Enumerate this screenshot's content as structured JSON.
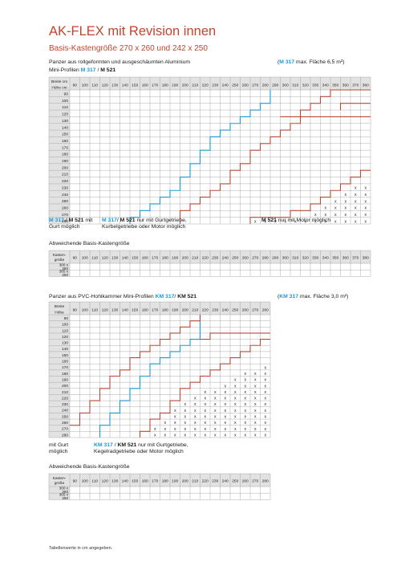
{
  "title": "AK-FLEX mit Revision innen",
  "subtitle": "Basis-Kastengröße 270 x 260 und 242 x 250",
  "colors": {
    "accent": "#c8432b",
    "blue_line": "#1a9ad6",
    "red_line": "#b94a35"
  },
  "section1": {
    "heading1": "Panzer aus rollgeformten und ausgeschäumten Aluminium",
    "heading2_prefix": "Mini-Profilen ",
    "profile_a": "M 317",
    "sep": " / ",
    "profile_b": "M 521",
    "max_open": "(",
    "max_prof": "M 317",
    "max_text": " max. Fläche 6,5 m²)",
    "corner_top": "Breite cm",
    "corner_bottom": "Höhe cm",
    "breite": [
      "90",
      "100",
      "110",
      "120",
      "130",
      "140",
      "150",
      "160",
      "170",
      "180",
      "190",
      "200",
      "210",
      "220",
      "230",
      "240",
      "250",
      "260",
      "270",
      "280",
      "290",
      "300",
      "310",
      "320",
      "330",
      "340",
      "350",
      "360",
      "370",
      "380"
    ],
    "hoehe": [
      "90",
      "100",
      "110",
      "120",
      "130",
      "140",
      "150",
      "160",
      "170",
      "180",
      "190",
      "200",
      "210",
      "220",
      "230",
      "240",
      "250",
      "260",
      "270",
      "280"
    ],
    "legend_a": {
      "p1": "M 317",
      "sep": " / ",
      "p2": "M 521",
      "t1": " mit",
      "t2": "Gurt möglich"
    },
    "legend_b": {
      "p1": "M 317",
      "sep": "/ ",
      "p2": "M 521",
      "t1": " nur mit Gurtgetriebe,",
      "t2": "Kurbelgetriebe oder Motor möglich"
    },
    "legend_c": {
      "p": "M 521",
      "t": " nur mit Motor möglich"
    }
  },
  "alt1": {
    "heading": "Abweichende Basis-Kastengröße",
    "header_label": "Kasten-größe",
    "cols": [
      "90",
      "100",
      "110",
      "120",
      "130",
      "140",
      "150",
      "160",
      "170",
      "180",
      "190",
      "200",
      "210",
      "220",
      "230",
      "240",
      "250",
      "260",
      "270",
      "280",
      "290",
      "300",
      "310",
      "320",
      "330",
      "340",
      "350",
      "360",
      "370",
      "380"
    ],
    "rows": [
      "300 x 260",
      "365 x 260"
    ]
  },
  "section2": {
    "heading_prefix": "Panzer aus PVC-Hohlkammer Mini-Profilen ",
    "profile_a": "KM 317",
    "sep": "/ ",
    "profile_b": "KM 521",
    "max_open": "(",
    "max_prof": "KM 317",
    "max_text": " max. Fläche 3,0 m²)",
    "corner_top": "Breite",
    "corner_bottom": "Höhe",
    "breite": [
      "90",
      "100",
      "110",
      "120",
      "130",
      "140",
      "150",
      "160",
      "170",
      "180",
      "190",
      "200",
      "210",
      "220",
      "230",
      "240",
      "250",
      "260",
      "270",
      "280"
    ],
    "hoehe": [
      "90",
      "100",
      "110",
      "120",
      "130",
      "140",
      "150",
      "160",
      "170",
      "180",
      "190",
      "200",
      "210",
      "220",
      "230",
      "240",
      "250",
      "260",
      "270",
      "280"
    ],
    "legend_a": {
      "t1": "mit Gurt",
      "t2": "möglich"
    },
    "legend_b": {
      "p1": "KM 317",
      "sep": " / ",
      "p2": "KM 521",
      "t1": " nur mit Gurtgetriebe,",
      "t2": "Kegelradgetriebe oder Motor möglich"
    }
  },
  "alt2": {
    "heading": "Abweichende Basis-Kastengröße",
    "header_label": "Kasten-größe",
    "cols": [
      "90",
      "100",
      "110",
      "120",
      "130",
      "140",
      "150",
      "160",
      "170",
      "180",
      "190",
      "200",
      "210",
      "220",
      "230",
      "240",
      "250",
      "260",
      "270",
      "280"
    ],
    "rows": [
      "300 x 260",
      "365 x 260"
    ]
  },
  "footnote": "Tabellenwerte in cm angegeben.",
  "mark": "x"
}
